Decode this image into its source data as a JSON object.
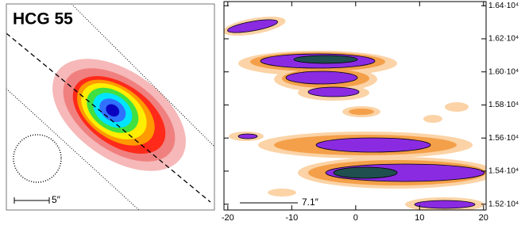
{
  "left_panel": {
    "title": "HCG 55",
    "scale_bar": "5″"
  },
  "right_panel": {
    "scale_bar": "7.1″",
    "xlim": [
      -20.6,
      20.4
    ],
    "xticks": [
      -20,
      -10,
      0,
      10,
      20
    ],
    "ylim": [
      15165,
      16425
    ],
    "yticks": [
      {
        "value": 15200,
        "label": "1.52·10⁴"
      },
      {
        "value": 15400,
        "label": "1.54·10⁴"
      },
      {
        "value": 15600,
        "label": "1.56·10⁴"
      },
      {
        "value": 15800,
        "label": "1.58·10⁴"
      },
      {
        "value": 16000,
        "label": "1.60·10⁴"
      },
      {
        "value": 16200,
        "label": "1.62·10⁴"
      },
      {
        "value": 16400,
        "label": "1.64·10⁴"
      }
    ]
  }
}
